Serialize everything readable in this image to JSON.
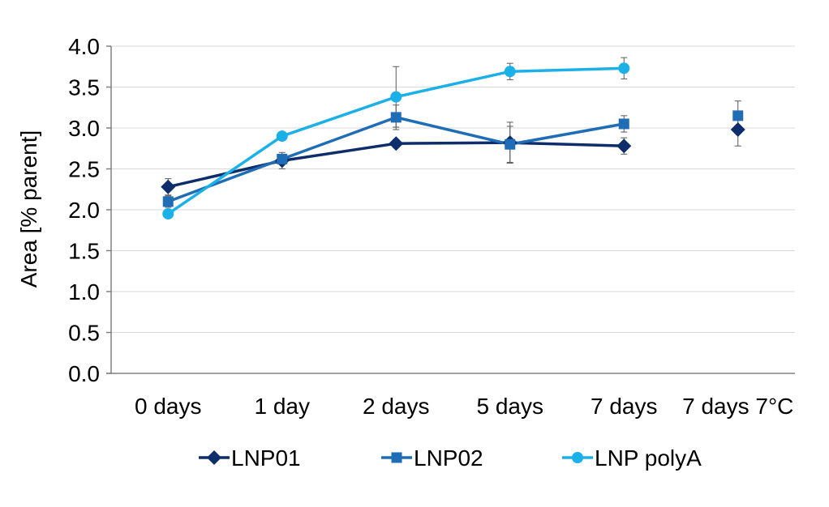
{
  "chart_data": {
    "type": "line",
    "title": "",
    "xlabel": "",
    "ylabel": "Area [% parent]",
    "categories": [
      "0 days",
      "1 day",
      "2 days",
      "5 days",
      "7 days",
      "7 days 7°C"
    ],
    "ylim": [
      0,
      4
    ],
    "yticks": [
      "0.0",
      "0.5",
      "1.0",
      "1.5",
      "2.0",
      "2.5",
      "3.0",
      "3.5",
      "4.0"
    ],
    "grid": "horizontal",
    "legend_position": "bottom",
    "series": [
      {
        "name": "LNP01",
        "color": "#0d2d6b",
        "marker": "diamond",
        "values": [
          2.28,
          2.6,
          2.81,
          2.82,
          2.78,
          2.98
        ],
        "errors": [
          0.1,
          0.1,
          0.05,
          0.25,
          0.1,
          0.2
        ],
        "connected_through": 4
      },
      {
        "name": "LNP02",
        "color": "#1f6db5",
        "marker": "square",
        "values": [
          2.1,
          2.62,
          3.13,
          2.8,
          3.05,
          3.15
        ],
        "errors": [
          0.07,
          0.05,
          0.15,
          0.22,
          0.1,
          0.18
        ],
        "connected_through": 4
      },
      {
        "name": "LNP polyA",
        "color": "#1cb0e8",
        "marker": "circle",
        "values": [
          1.95,
          2.9,
          3.38,
          3.69,
          3.73,
          null
        ],
        "errors": [
          0.05,
          0.03,
          0.37,
          0.1,
          0.13,
          null
        ],
        "connected_through": 4
      }
    ]
  }
}
